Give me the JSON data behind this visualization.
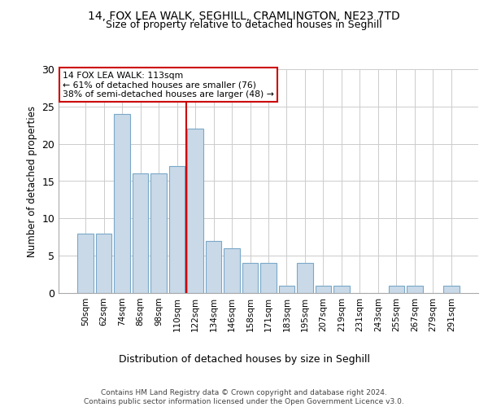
{
  "title1": "14, FOX LEA WALK, SEGHILL, CRAMLINGTON, NE23 7TD",
  "title2": "Size of property relative to detached houses in Seghill",
  "xlabel": "Distribution of detached houses by size in Seghill",
  "ylabel": "Number of detached properties",
  "categories": [
    "50sqm",
    "62sqm",
    "74sqm",
    "86sqm",
    "98sqm",
    "110sqm",
    "122sqm",
    "134sqm",
    "146sqm",
    "158sqm",
    "171sqm",
    "183sqm",
    "195sqm",
    "207sqm",
    "219sqm",
    "231sqm",
    "243sqm",
    "255sqm",
    "267sqm",
    "279sqm",
    "291sqm"
  ],
  "values": [
    8,
    8,
    24,
    16,
    16,
    17,
    22,
    7,
    6,
    4,
    4,
    1,
    4,
    1,
    1,
    0,
    0,
    1,
    1,
    0,
    1
  ],
  "bar_color": "#c9d9e8",
  "bar_edge_color": "#7aa8c8",
  "vline_x_index": 5.5,
  "annotation_text": "14 FOX LEA WALK: 113sqm\n← 61% of detached houses are smaller (76)\n38% of semi-detached houses are larger (48) →",
  "annotation_box_color": "#ffffff",
  "annotation_box_edge": "#cc0000",
  "vline_color": "#cc0000",
  "ylim": [
    0,
    30
  ],
  "yticks": [
    0,
    5,
    10,
    15,
    20,
    25,
    30
  ],
  "footer": "Contains HM Land Registry data © Crown copyright and database right 2024.\nContains public sector information licensed under the Open Government Licence v3.0.",
  "bg_color": "#ffffff",
  "grid_color": "#cccccc"
}
